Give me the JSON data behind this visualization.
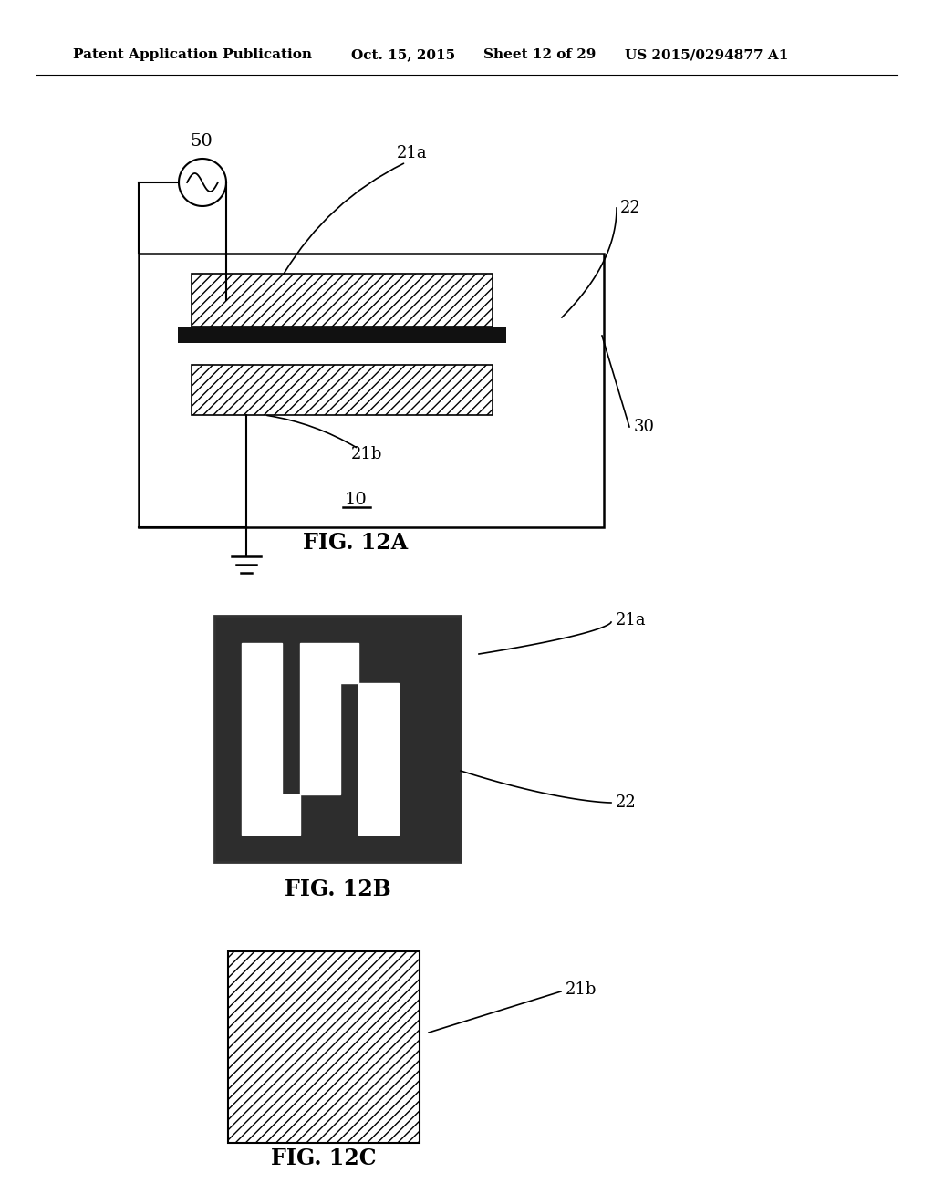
{
  "bg_color": "#ffffff",
  "header_text": "Patent Application Publication",
  "header_date": "Oct. 15, 2015",
  "header_sheet": "Sheet 12 of 29",
  "header_patent": "US 2015/0294877 A1",
  "fig12a_label": "FIG. 12A",
  "fig12b_label": "FIG. 12B",
  "fig12c_label": "FIG. 12C",
  "label_50": "50",
  "label_21a": "21a",
  "label_22_a": "22",
  "label_21b": "21b",
  "label_30": "30",
  "label_10": "10",
  "label_21a_b": "21a",
  "label_22_b": "22",
  "label_21b_c": "21b"
}
